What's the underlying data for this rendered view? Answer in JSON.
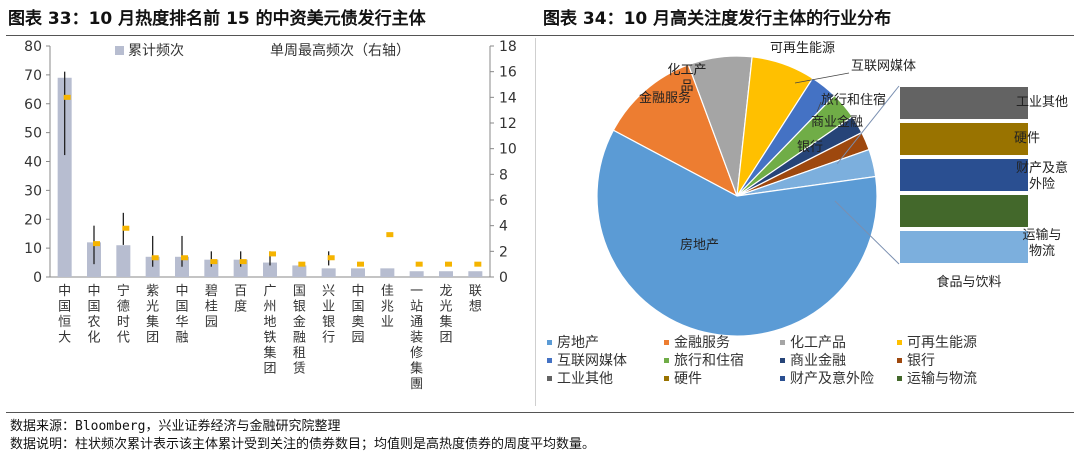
{
  "left_title": "图表 33：10 月热度排名前 15 的中资美元债发行主体",
  "right_title": "图表 34：10 月高关注度发行主体的行业分布",
  "source_note": "数据来源：Bloomberg，兴业证券经济与金融研究院整理",
  "data_note": "数据说明：柱状频次累计表示该主体累计受到关注的债券数目；均值则是高热度债券的周度平均数量。",
  "colors": {
    "bar": "#b7bdd0",
    "marker": "#f5b400",
    "error": "#222222",
    "connector": "#7a8fb0"
  },
  "chart_data": [
    {
      "type": "bar",
      "categories": [
        "中国恒大",
        "中国农化",
        "宁德时代",
        "紫光集团",
        "中国华融",
        "碧桂园",
        "百度",
        "广州地铁集团",
        "国银金融租赁",
        "兴业银行",
        "中国奥园",
        "佳兆业",
        "一站通装修集團",
        "龙光集团",
        "联想"
      ],
      "series": [
        {
          "name": "累计频次",
          "axis": "left",
          "values": [
            69,
            12,
            11,
            7,
            7,
            6,
            6,
            5,
            4,
            3,
            3,
            3,
            2,
            2,
            2
          ]
        },
        {
          "name": "单周最高频次（右轴）",
          "axis": "right",
          "values": [
            14,
            2.6,
            3.8,
            1.5,
            1.5,
            1.2,
            1.2,
            1.8,
            1,
            1.5,
            1,
            3.3,
            1,
            1,
            1
          ],
          "error_low": [
            9.5,
            1.0,
            2.5,
            0.8,
            0.8,
            0.8,
            0.8,
            0.9,
            null,
            0.9,
            null,
            null,
            null,
            null,
            null
          ],
          "error_high": [
            16,
            4.0,
            5.0,
            3.2,
            3.2,
            2.0,
            2.0,
            2.0,
            null,
            2.0,
            null,
            null,
            null,
            null,
            null
          ]
        }
      ],
      "ylim_left": [
        0,
        80
      ],
      "ylim_right": [
        0,
        18
      ],
      "yticks_left": [
        0,
        10,
        20,
        30,
        40,
        50,
        60,
        70,
        80
      ],
      "yticks_right": [
        0,
        2,
        4,
        6,
        8,
        10,
        12,
        14,
        16,
        18
      ],
      "legend_placement": "top"
    },
    {
      "type": "pie",
      "labels": [
        "房地产",
        "金融服务",
        "化工产品",
        "可再生能源",
        "互联网媒体",
        "旅行和住宿",
        "商业金融",
        "银行",
        "工业其他",
        "硬件",
        "财产及意外险",
        "运输与物流",
        "食品与饮料"
      ],
      "values": [
        57,
        11,
        7,
        7,
        3,
        3,
        2,
        2,
        1.5,
        1.5,
        1.5,
        1.5,
        3
      ],
      "colors": [
        "#5b9bd5",
        "#ed7d31",
        "#a5a5a5",
        "#ffc000",
        "#4472c4",
        "#70ad47",
        "#264478",
        "#9e480e",
        "#636363",
        "#997300",
        "#2a4f91",
        "#43682b",
        "#7cafdd"
      ],
      "grouped_into_bar": [
        "工业其他",
        "硬件",
        "财产及意外险",
        "运输与物流",
        "食品与饮料"
      ],
      "legend_placement": "bottom"
    }
  ]
}
